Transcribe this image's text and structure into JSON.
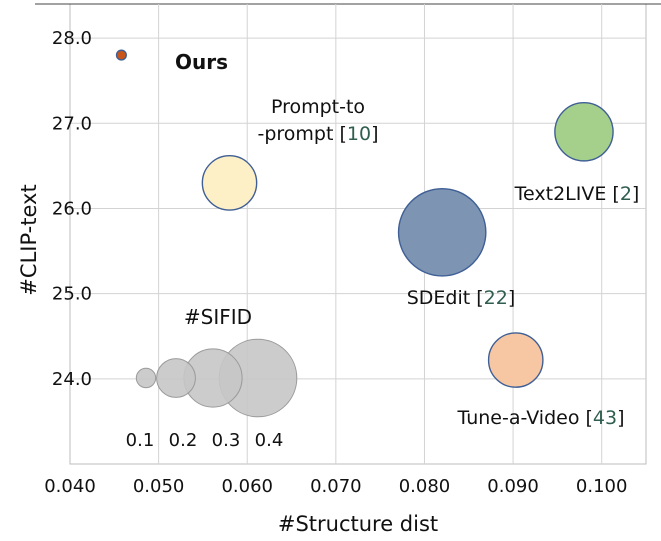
{
  "chart_data": {
    "type": "scatter",
    "title": "",
    "xlabel": "#Structure dist",
    "ylabel": "#CLIP-text",
    "xlim": [
      0.04,
      0.105
    ],
    "ylim": [
      23.0,
      28.4
    ],
    "xticks": [
      0.04,
      0.05,
      0.06,
      0.07,
      0.08,
      0.09,
      0.1
    ],
    "xtick_labels": [
      "0.040",
      "0.050",
      "0.060",
      "0.070",
      "0.080",
      "0.090",
      "0.100"
    ],
    "yticks": [
      24.0,
      25.0,
      26.0,
      27.0,
      28.0
    ],
    "ytick_labels": [
      "24.0",
      "25.0",
      "26.0",
      "27.0",
      "28.0"
    ],
    "grid": true,
    "bubble_size_metric": "#SIFID",
    "points": [
      {
        "name": "Ours",
        "x": 0.0458,
        "y": 27.8,
        "sifid": 0.05,
        "color": "#c8561a",
        "label_lines": [
          "Ours"
        ],
        "ref": ""
      },
      {
        "name": "Prompt-to-prompt",
        "x": 0.058,
        "y": 26.3,
        "sifid": 0.28,
        "color": "#fdefc6",
        "label_lines": [
          "Prompt-to",
          "-prompt ["
        ],
        "ref": "10"
      },
      {
        "name": "Text2LIVE",
        "x": 0.098,
        "y": 26.9,
        "sifid": 0.3,
        "color": "#a5d08b",
        "label_lines": [
          "Text2LIVE ["
        ],
        "ref": "2"
      },
      {
        "name": "SDEdit",
        "x": 0.082,
        "y": 25.72,
        "sifid": 0.45,
        "color": "#7d94b3",
        "label_lines": [
          "SDEdit ["
        ],
        "ref": "22"
      },
      {
        "name": "Tune-a-Video",
        "x": 0.0903,
        "y": 24.22,
        "sifid": 0.28,
        "color": "#f7c7a4",
        "label_lines": [
          "Tune-a-Video ["
        ],
        "ref": "43"
      }
    ],
    "size_legend": {
      "title": "#SIFID",
      "values": [
        0.1,
        0.2,
        0.3,
        0.4
      ],
      "labels": [
        "0.1",
        "0.2",
        "0.3",
        "0.4"
      ],
      "color": "#c6c6c6"
    }
  }
}
